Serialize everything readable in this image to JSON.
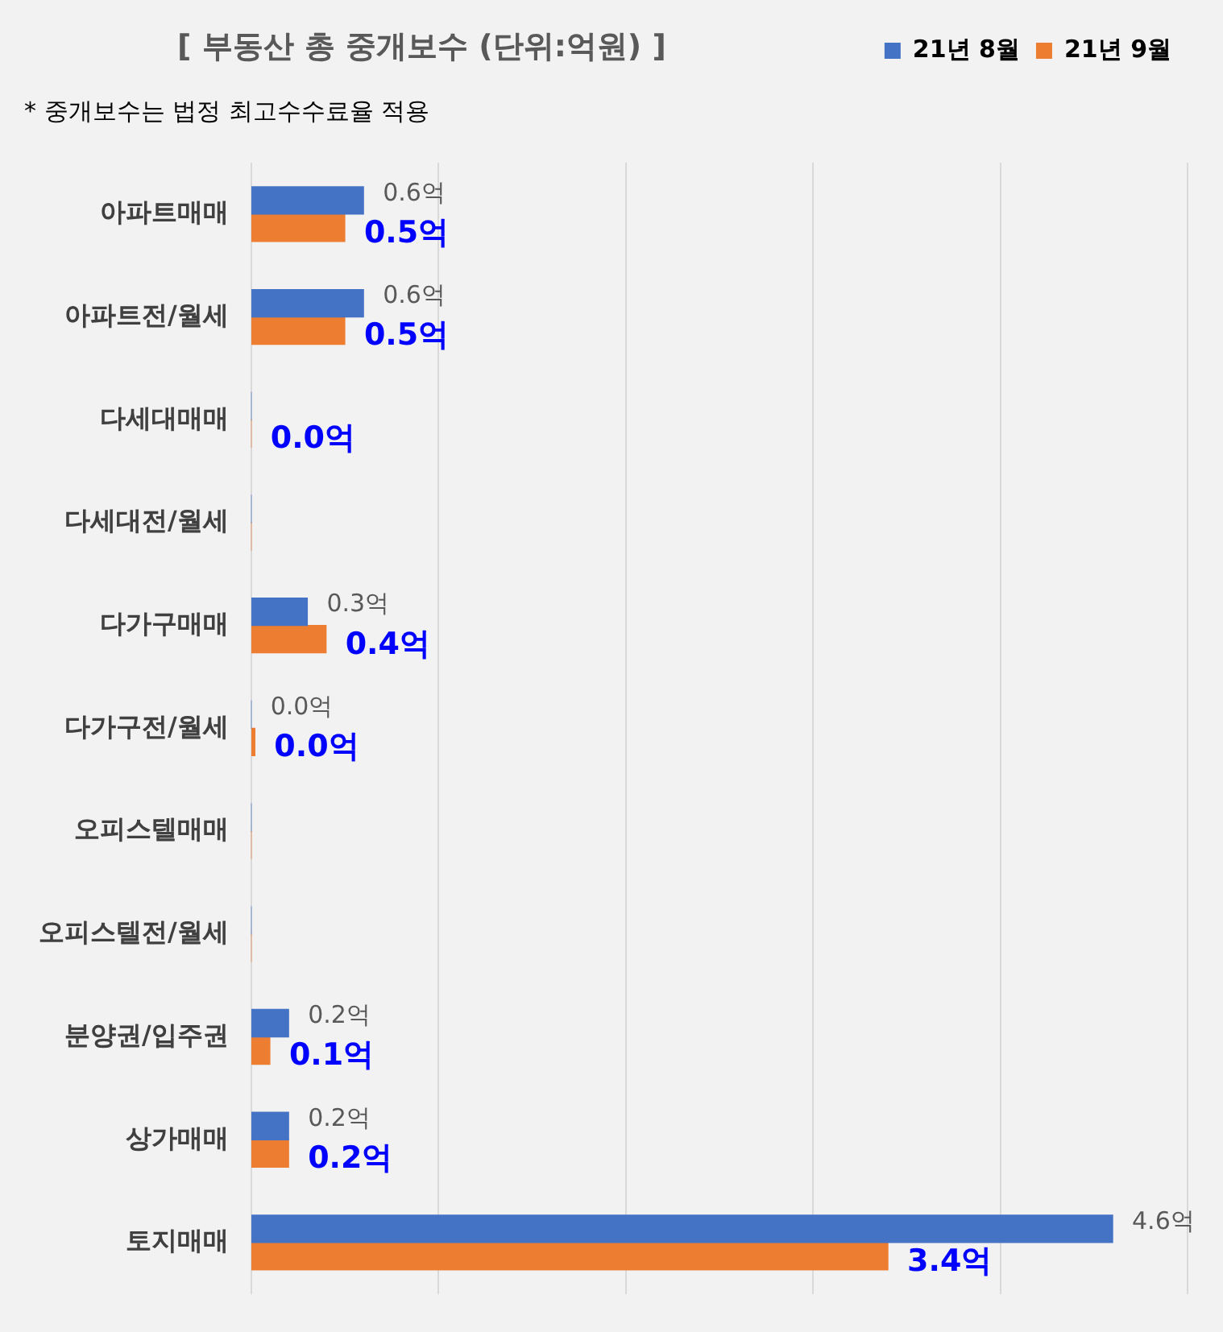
{
  "chart_data": {
    "type": "bar",
    "orientation": "horizontal",
    "title": "[ 부동산 총 중개보수 (단위:억원) ]",
    "annotations": [
      "* 중개보수는 법정 최고수수료율 적용"
    ],
    "categories": [
      "아파트매매",
      "아파트전/월세",
      "다세대매매",
      "다세대전/월세",
      "다가구매매",
      "다가구전/월세",
      "오피스텔매매",
      "오피스텔전/월세",
      "분양권/입주권",
      "상가매매",
      "토지매매"
    ],
    "series": [
      {
        "name": "21년 8월",
        "color": "#4472c4",
        "values": [
          0.6,
          0.6,
          0,
          0,
          0.3,
          0.0,
          0,
          0,
          0.2,
          0.2,
          4.6
        ],
        "value_labels": [
          "0.6억",
          "0.6억",
          null,
          null,
          "0.3억",
          "0.0억",
          null,
          null,
          "0.2억",
          "0.2억",
          "4.6억"
        ]
      },
      {
        "name": "21년 9월",
        "color": "#ed7d31",
        "values": [
          0.5,
          0.5,
          0.0,
          0,
          0.4,
          0.02,
          0,
          0,
          0.1,
          0.2,
          3.4
        ],
        "value_labels": [
          "0.5억",
          "0.5억",
          "0.0억",
          null,
          "0.4억",
          "0.0억",
          null,
          null,
          "0.1억",
          "0.2억",
          "3.4억"
        ]
      }
    ],
    "xlim": [
      0,
      5
    ],
    "xticks": [
      {
        "value": 0,
        "label": null
      },
      {
        "value": 1,
        "label": null
      },
      {
        "value": 2,
        "label": null
      },
      {
        "value": 3,
        "label": null
      },
      {
        "value": 4,
        "label": null
      },
      {
        "value": 5,
        "label": null
      }
    ],
    "tick_labels": "y",
    "grid": "x",
    "legend": "top right"
  }
}
